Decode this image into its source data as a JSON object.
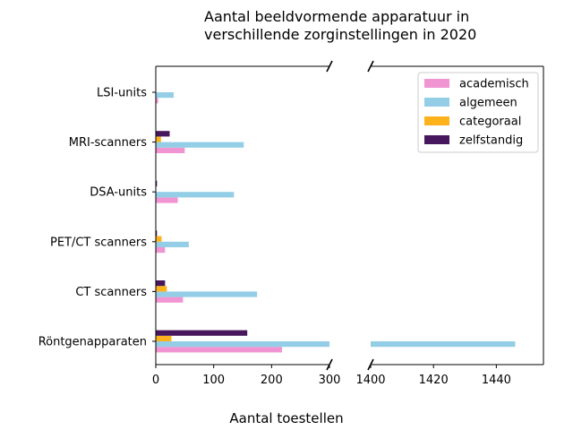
{
  "chart_data": {
    "type": "bar",
    "orientation": "horizontal",
    "title_lines": [
      "Aantal beeldvormende apparatuur in",
      "verschillende zorginstellingen in 2020"
    ],
    "xlabel": "Aantal toestellen",
    "ylabel": "",
    "categories": [
      "LSI-units",
      "MRI-scanners",
      "DSA-units",
      "PET/CT scanners",
      "CT scanners",
      "Röntgenapparaten"
    ],
    "series": [
      {
        "name": "academisch",
        "color": "#f095d2",
        "values": [
          4,
          50,
          38,
          16,
          47,
          218
        ]
      },
      {
        "name": "algemeen",
        "color": "#93cde6",
        "values": [
          31,
          152,
          135,
          57,
          175,
          1446
        ]
      },
      {
        "name": "categoraal",
        "color": "#fdb11a",
        "values": [
          0,
          9,
          0,
          10,
          19,
          27
        ]
      },
      {
        "name": "zelfstandig",
        "color": "#47175e",
        "values": [
          0,
          24,
          2,
          2,
          16,
          158
        ]
      }
    ],
    "broken_axis": {
      "left_xlim": [
        0,
        300
      ],
      "left_ticks": [
        0,
        100,
        200,
        300
      ],
      "right_xlim": [
        1400,
        1455
      ],
      "right_ticks": [
        1400,
        1420,
        1440
      ]
    },
    "legend_position": "top-right",
    "grid": false
  }
}
